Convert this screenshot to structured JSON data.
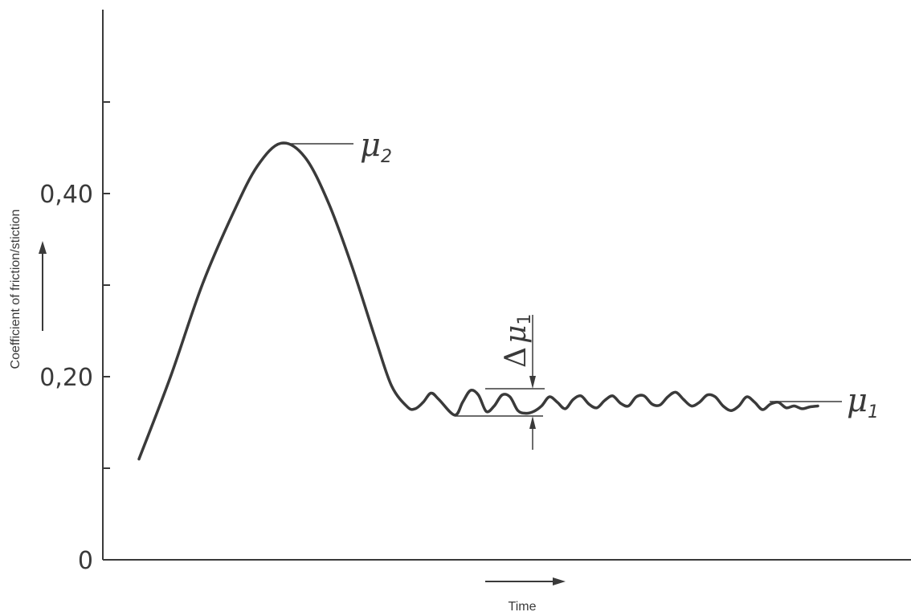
{
  "chart_data": {
    "type": "line",
    "title": "",
    "xlabel": "Time",
    "ylabel": "Coefficient of friction/stiction",
    "ylim": [
      0,
      0.6
    ],
    "y_ticks": [
      0,
      0.1,
      0.2,
      0.3,
      0.4,
      0.5
    ],
    "y_tick_labels": [
      {
        "value": 0,
        "text": "0"
      },
      {
        "value": 0.2,
        "text": "0,20"
      },
      {
        "value": 0.4,
        "text": "0,40"
      }
    ],
    "grid": false,
    "series": [
      {
        "name": "",
        "x": [
          0.0,
          0.04,
          0.08,
          0.12,
          0.15,
          0.18,
          0.21,
          0.24,
          0.27,
          0.3,
          0.32,
          0.34,
          0.35,
          0.36,
          0.37,
          0.38,
          0.4,
          0.41,
          0.42,
          0.43,
          0.44,
          0.45,
          0.46,
          0.47,
          0.48,
          0.49,
          0.5,
          0.51,
          0.52,
          0.53,
          0.54,
          0.55,
          0.56,
          0.57,
          0.58,
          0.59,
          0.6,
          0.61,
          0.62,
          0.63,
          0.64,
          0.65,
          0.66,
          0.67,
          0.68,
          0.69,
          0.7,
          0.71,
          0.72,
          0.73,
          0.74,
          0.75,
          0.76,
          0.77,
          0.78,
          0.79,
          0.8,
          0.81,
          0.82,
          0.83,
          0.84,
          0.85,
          0.86
        ],
        "y": [
          0.11,
          0.2,
          0.3,
          0.38,
          0.43,
          0.455,
          0.44,
          0.39,
          0.32,
          0.24,
          0.19,
          0.167,
          0.165,
          0.172,
          0.182,
          0.175,
          0.158,
          0.172,
          0.185,
          0.18,
          0.162,
          0.168,
          0.18,
          0.178,
          0.163,
          0.16,
          0.162,
          0.168,
          0.178,
          0.172,
          0.165,
          0.175,
          0.179,
          0.17,
          0.166,
          0.174,
          0.179,
          0.171,
          0.168,
          0.178,
          0.179,
          0.17,
          0.169,
          0.178,
          0.183,
          0.175,
          0.168,
          0.172,
          0.18,
          0.178,
          0.168,
          0.163,
          0.168,
          0.178,
          0.172,
          0.164,
          0.17,
          0.172,
          0.166,
          0.168,
          0.165,
          0.167,
          0.168
        ]
      }
    ],
    "annotations": {
      "mu2": {
        "base": "μ",
        "sub": "2",
        "y": 0.455
      },
      "mu1": {
        "base": "μ",
        "sub": "1",
        "y": 0.172
      },
      "delta_mu1": {
        "prefix": "Δ",
        "base": "μ",
        "sub": "1",
        "y_high": 0.185,
        "y_low": 0.158
      }
    }
  },
  "colors": {
    "ink": "#3a3a3a",
    "background": "#ffffff"
  }
}
